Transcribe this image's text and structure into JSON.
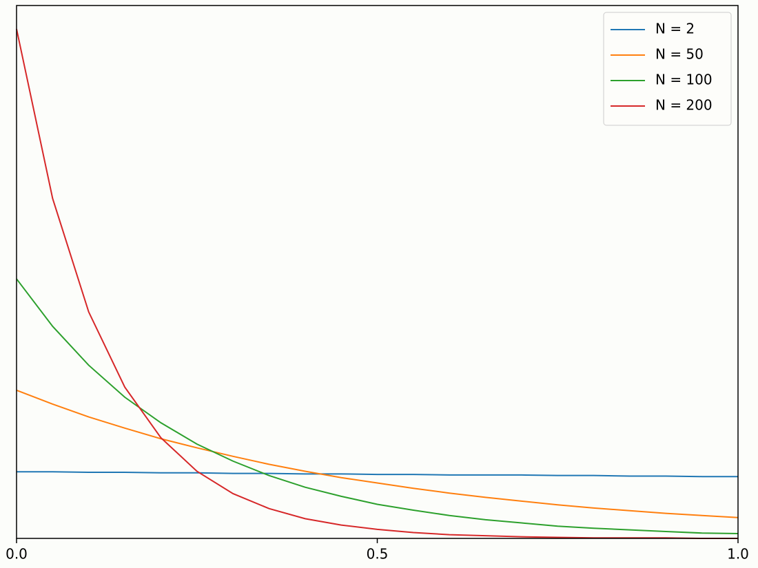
{
  "chart_data": {
    "type": "line",
    "x": [
      0,
      0.05,
      0.1,
      0.15,
      0.2,
      0.25,
      0.3,
      0.35,
      0.4,
      0.45,
      0.5,
      0.55,
      0.6,
      0.65,
      0.7,
      0.75,
      0.8,
      0.85,
      0.9,
      0.95,
      1
    ],
    "series": [
      {
        "name": "N = 2",
        "color": "#1f77b4",
        "values": [
          0.125,
          0.125,
          0.124,
          0.124,
          0.123,
          0.123,
          0.122,
          0.122,
          0.121,
          0.121,
          0.12,
          0.12,
          0.119,
          0.119,
          0.119,
          0.118,
          0.118,
          0.117,
          0.117,
          0.116,
          0.116
        ]
      },
      {
        "name": "N = 50",
        "color": "#ff7f0e",
        "values": [
          0.278,
          0.252,
          0.228,
          0.207,
          0.187,
          0.17,
          0.154,
          0.139,
          0.126,
          0.114,
          0.104,
          0.094,
          0.085,
          0.077,
          0.07,
          0.063,
          0.057,
          0.052,
          0.047,
          0.043,
          0.039
        ]
      },
      {
        "name": "N = 100",
        "color": "#2ca02c",
        "values": [
          0.487,
          0.398,
          0.325,
          0.265,
          0.217,
          0.177,
          0.145,
          0.118,
          0.096,
          0.079,
          0.064,
          0.053,
          0.043,
          0.035,
          0.029,
          0.023,
          0.019,
          0.016,
          0.013,
          0.01,
          0.009
        ]
      },
      {
        "name": "N = 200",
        "color": "#d62728",
        "values": [
          0.956,
          0.638,
          0.425,
          0.284,
          0.189,
          0.126,
          0.084,
          0.056,
          0.037,
          0.025,
          0.017,
          0.011,
          0.007,
          0.005,
          0.003,
          0.002,
          0.001,
          0.001,
          0.001,
          0,
          0
        ]
      }
    ],
    "xlim": [
      0,
      1
    ],
    "xticks": [
      {
        "value": 0,
        "label": "0.0"
      },
      0.5,
      {
        "value": 1,
        "label": "1.0"
      }
    ],
    "ylim": [
      0,
      1
    ],
    "legend": "upper right"
  }
}
